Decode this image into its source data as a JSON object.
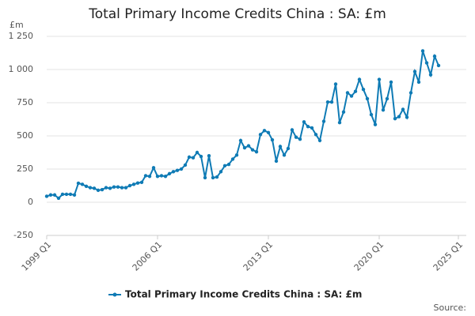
{
  "chart_data": {
    "type": "line",
    "title": "Total Primary Income Credits China : SA: £m",
    "y_label": "£m",
    "source": "Source:",
    "categories": [
      "1999 Q1",
      null,
      null,
      null,
      null,
      null,
      null,
      null,
      null,
      null,
      null,
      null,
      null,
      null,
      null,
      null,
      null,
      null,
      null,
      null,
      null,
      null,
      null,
      null,
      null,
      null,
      null,
      null,
      "2006 Q1",
      null,
      null,
      null,
      null,
      null,
      null,
      null,
      null,
      null,
      null,
      null,
      null,
      null,
      null,
      null,
      null,
      null,
      null,
      null,
      null,
      null,
      null,
      null,
      null,
      null,
      null,
      null,
      "2013 Q1",
      null,
      null,
      null,
      null,
      null,
      null,
      null,
      null,
      null,
      null,
      null,
      null,
      null,
      null,
      null,
      null,
      null,
      null,
      null,
      null,
      null,
      null,
      null,
      null,
      null,
      null,
      null,
      "2020 Q1",
      null,
      null,
      null,
      null,
      null,
      null,
      null,
      null,
      null,
      null,
      null,
      null,
      null,
      null,
      null,
      null,
      null,
      null,
      null,
      "2025 Q1"
    ],
    "series": [
      {
        "name": "Total Primary Income Credits China : SA: £m",
        "color": "#0f7bb5",
        "values": [
          45,
          55,
          55,
          30,
          60,
          60,
          60,
          55,
          143,
          135,
          120,
          110,
          105,
          90,
          95,
          110,
          105,
          115,
          115,
          110,
          110,
          125,
          135,
          145,
          150,
          200,
          195,
          260,
          195,
          200,
          195,
          215,
          230,
          240,
          250,
          280,
          340,
          335,
          375,
          345,
          185,
          350,
          185,
          190,
          230,
          275,
          285,
          325,
          355,
          465,
          410,
          425,
          395,
          380,
          510,
          540,
          525,
          470,
          310,
          420,
          355,
          405,
          545,
          490,
          475,
          605,
          570,
          560,
          510,
          465,
          610,
          755,
          755,
          890,
          600,
          680,
          825,
          800,
          835,
          925,
          850,
          780,
          660,
          585,
          925,
          695,
          780,
          905,
          630,
          645,
          700,
          640,
          825,
          985,
          905,
          1140,
          1050,
          960,
          1100,
          1030,
          null,
          null,
          null,
          null,
          null
        ]
      }
    ],
    "ylim": [
      -250,
      1250
    ],
    "yticks": [
      -250,
      0,
      250,
      500,
      750,
      {
        "value": 1000,
        "label": "1 000"
      },
      {
        "value": 1250,
        "label": "1 250"
      }
    ],
    "grid": true
  }
}
